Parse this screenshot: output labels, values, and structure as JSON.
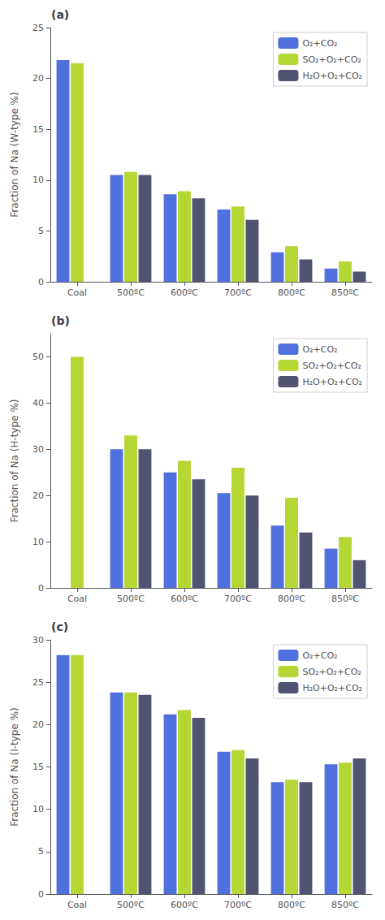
{
  "chart_data": [
    {
      "type": "bar",
      "title": "(a)",
      "ylabel": "Fraction of Na (W-type %)",
      "categories": [
        "Coal",
        "500ºC",
        "600ºC",
        "700ºC",
        "800ºC",
        "850ºC"
      ],
      "series": [
        {
          "name": "O₂+CO₂",
          "values": [
            21.8,
            10.5,
            8.6,
            7.1,
            2.9,
            1.3
          ]
        },
        {
          "name": "SO₂+O₂+CO₂",
          "values": [
            21.5,
            10.8,
            8.9,
            7.4,
            3.5,
            2.0
          ]
        },
        {
          "name": "H₂O+O₂+CO₂",
          "values": [
            null,
            10.5,
            8.2,
            6.1,
            2.2,
            1.0
          ]
        }
      ],
      "ylim": [
        0,
        25
      ],
      "yticks": [
        0,
        5,
        10,
        15,
        20,
        25
      ],
      "grid": false,
      "legend": "upper right"
    },
    {
      "type": "bar",
      "title": "(b)",
      "ylabel": "Fraction of Na (H-type %)",
      "categories": [
        "Coal",
        "500ºC",
        "600ºC",
        "700ºC",
        "800ºC",
        "850ºC"
      ],
      "series": [
        {
          "name": "O₂+CO₂",
          "values": [
            null,
            30.0,
            25.0,
            20.5,
            13.5,
            8.5
          ]
        },
        {
          "name": "SO₂+O₂+CO₂",
          "values": [
            50.0,
            33.0,
            27.5,
            26.0,
            19.5,
            11.0
          ]
        },
        {
          "name": "H₂O+O₂+CO₂",
          "values": [
            null,
            30.0,
            23.5,
            20.0,
            12.0,
            6.0
          ]
        }
      ],
      "ylim": [
        0,
        55
      ],
      "yticks": [
        0,
        10,
        20,
        30,
        40,
        50
      ],
      "grid": false,
      "legend": "upper right"
    },
    {
      "type": "bar",
      "title": "(c)",
      "ylabel": "Fraction of Na (I-type %)",
      "categories": [
        "Coal",
        "500ºC",
        "600ºC",
        "700ºC",
        "800ºC",
        "850ºC"
      ],
      "series": [
        {
          "name": "O₂+CO₂",
          "values": [
            28.2,
            23.8,
            21.2,
            16.8,
            13.2,
            15.3
          ]
        },
        {
          "name": "SO₂+O₂+CO₂",
          "values": [
            28.2,
            23.8,
            21.7,
            17.0,
            13.5,
            15.5
          ]
        },
        {
          "name": "H₂O+O₂+CO₂",
          "values": [
            null,
            23.5,
            20.8,
            16.0,
            13.2,
            16.0
          ]
        }
      ],
      "ylim": [
        0,
        30
      ],
      "yticks": [
        0,
        5,
        10,
        15,
        20,
        25,
        30
      ],
      "grid": false,
      "legend": "upper right"
    }
  ]
}
